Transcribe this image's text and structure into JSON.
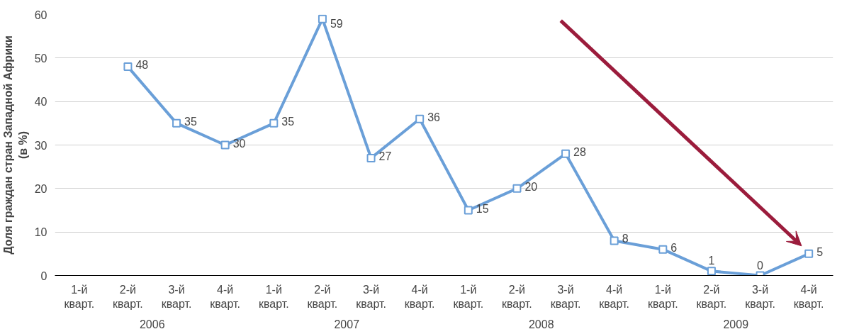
{
  "chart_data": {
    "type": "line",
    "ylabel": "Доля граждан стран Западной Африки\n(в %)",
    "categories": [
      "1-й\nкварт.",
      "2-й\nкварт.",
      "3-й\nкварт.",
      "4-й\nкварт.",
      "1-й\nкварт.",
      "2-й\nкварт.",
      "3-й\nкварт.",
      "4-й\nкварт.",
      "1-й\nкварт.",
      "2-й\nкварт.",
      "3-й\nкварт.",
      "4-й\nкварт.",
      "1-й\nкварт.",
      "2-й\nкварт.",
      "3-й\nкварт.",
      "4-й\nкварт."
    ],
    "series": [
      {
        "color": "#6a9fd8",
        "values": [
          null,
          48,
          35,
          30,
          35,
          59,
          27,
          36,
          15,
          20,
          28,
          8,
          6,
          1,
          0,
          5
        ]
      }
    ],
    "annotations": [
      "2006",
      "2007",
      "2008",
      "2009"
    ],
    "ylim": [
      0,
      60
    ],
    "yticks": [
      0,
      10,
      20,
      30,
      40,
      50,
      60
    ],
    "grid": "y",
    "marker": "square",
    "line_style": "solid",
    "data_labels": true
  }
}
